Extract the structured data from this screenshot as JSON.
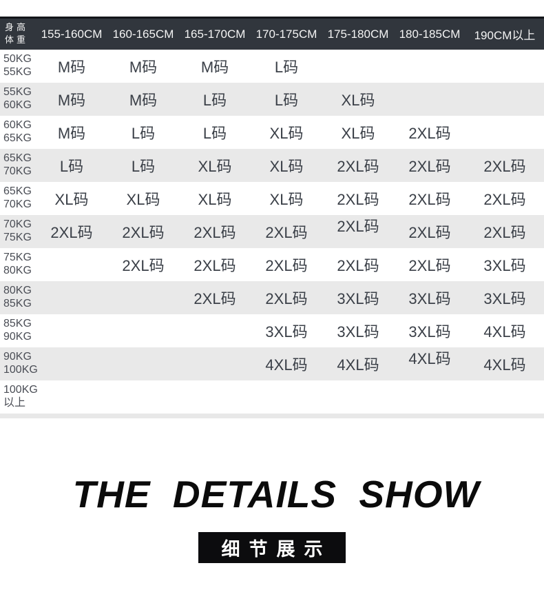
{
  "table": {
    "corner": {
      "top": "身高",
      "bottom": "体重"
    },
    "columns": [
      "155-160CM",
      "160-165CM",
      "165-170CM",
      "170-175CM",
      "175-180CM",
      "180-185CM",
      "190CM以上"
    ],
    "rows": [
      {
        "weight": [
          "50KG",
          "55KG"
        ],
        "sizes": [
          "M码",
          "M码",
          "M码",
          "L码",
          "",
          "",
          ""
        ]
      },
      {
        "weight": [
          "55KG",
          "60KG"
        ],
        "sizes": [
          "M码",
          "M码",
          "L码",
          "L码",
          "XL码",
          "",
          ""
        ]
      },
      {
        "weight": [
          "60KG",
          "65KG"
        ],
        "sizes": [
          "M码",
          "L码",
          "L码",
          "XL码",
          "XL码",
          "2XL码",
          ""
        ]
      },
      {
        "weight": [
          "65KG",
          "70KG"
        ],
        "sizes": [
          "L码",
          "L码",
          "XL码",
          "XL码",
          "2XL码",
          "2XL码",
          "2XL码"
        ]
      },
      {
        "weight": [
          "65KG",
          "70KG"
        ],
        "sizes": [
          "XL码",
          "XL码",
          "XL码",
          "XL码",
          "2XL码",
          "2XL码",
          "2XL码"
        ]
      },
      {
        "weight": [
          "70KG",
          "75KG"
        ],
        "sizes": [
          "2XL码",
          "2XL码",
          "2XL码",
          "2XL码",
          "2XL码",
          "2XL码",
          "2XL码"
        ],
        "raised": [
          4
        ]
      },
      {
        "weight": [
          "75KG",
          "80KG"
        ],
        "sizes": [
          "",
          "2XL码",
          "2XL码",
          "2XL码",
          "2XL码",
          "2XL码",
          "3XL码"
        ]
      },
      {
        "weight": [
          "80KG",
          "85KG"
        ],
        "sizes": [
          "",
          "",
          "2XL码",
          "2XL码",
          "3XL码",
          "3XL码",
          "3XL码"
        ]
      },
      {
        "weight": [
          "85KG",
          "90KG"
        ],
        "sizes": [
          "",
          "",
          "",
          "3XL码",
          "3XL码",
          "3XL码",
          "4XL码"
        ]
      },
      {
        "weight": [
          "90KG",
          "100KG"
        ],
        "sizes": [
          "",
          "",
          "",
          "4XL码",
          "4XL码",
          "4XL码",
          "4XL码"
        ],
        "raised": [
          5
        ]
      },
      {
        "weight": [
          "100KG",
          "以上"
        ],
        "sizes": [
          "",
          "",
          "",
          "",
          "",
          "",
          ""
        ]
      }
    ]
  },
  "details": {
    "title_en": "THE DETAILS SHOW",
    "badge_zh": "细节展示"
  },
  "colors": {
    "header_bg": "#31363d",
    "header_border": "#14161a",
    "header_text": "#f4f4f4",
    "row_alt_bg": "#e9e9e9",
    "size_text": "#3a3f47",
    "weight_text": "#4a4d55",
    "bottom_strip": "#e8e8e8",
    "title_text": "#0b0b0b",
    "badge_bg": "#0c0c0e",
    "badge_text": "#ffffff"
  }
}
